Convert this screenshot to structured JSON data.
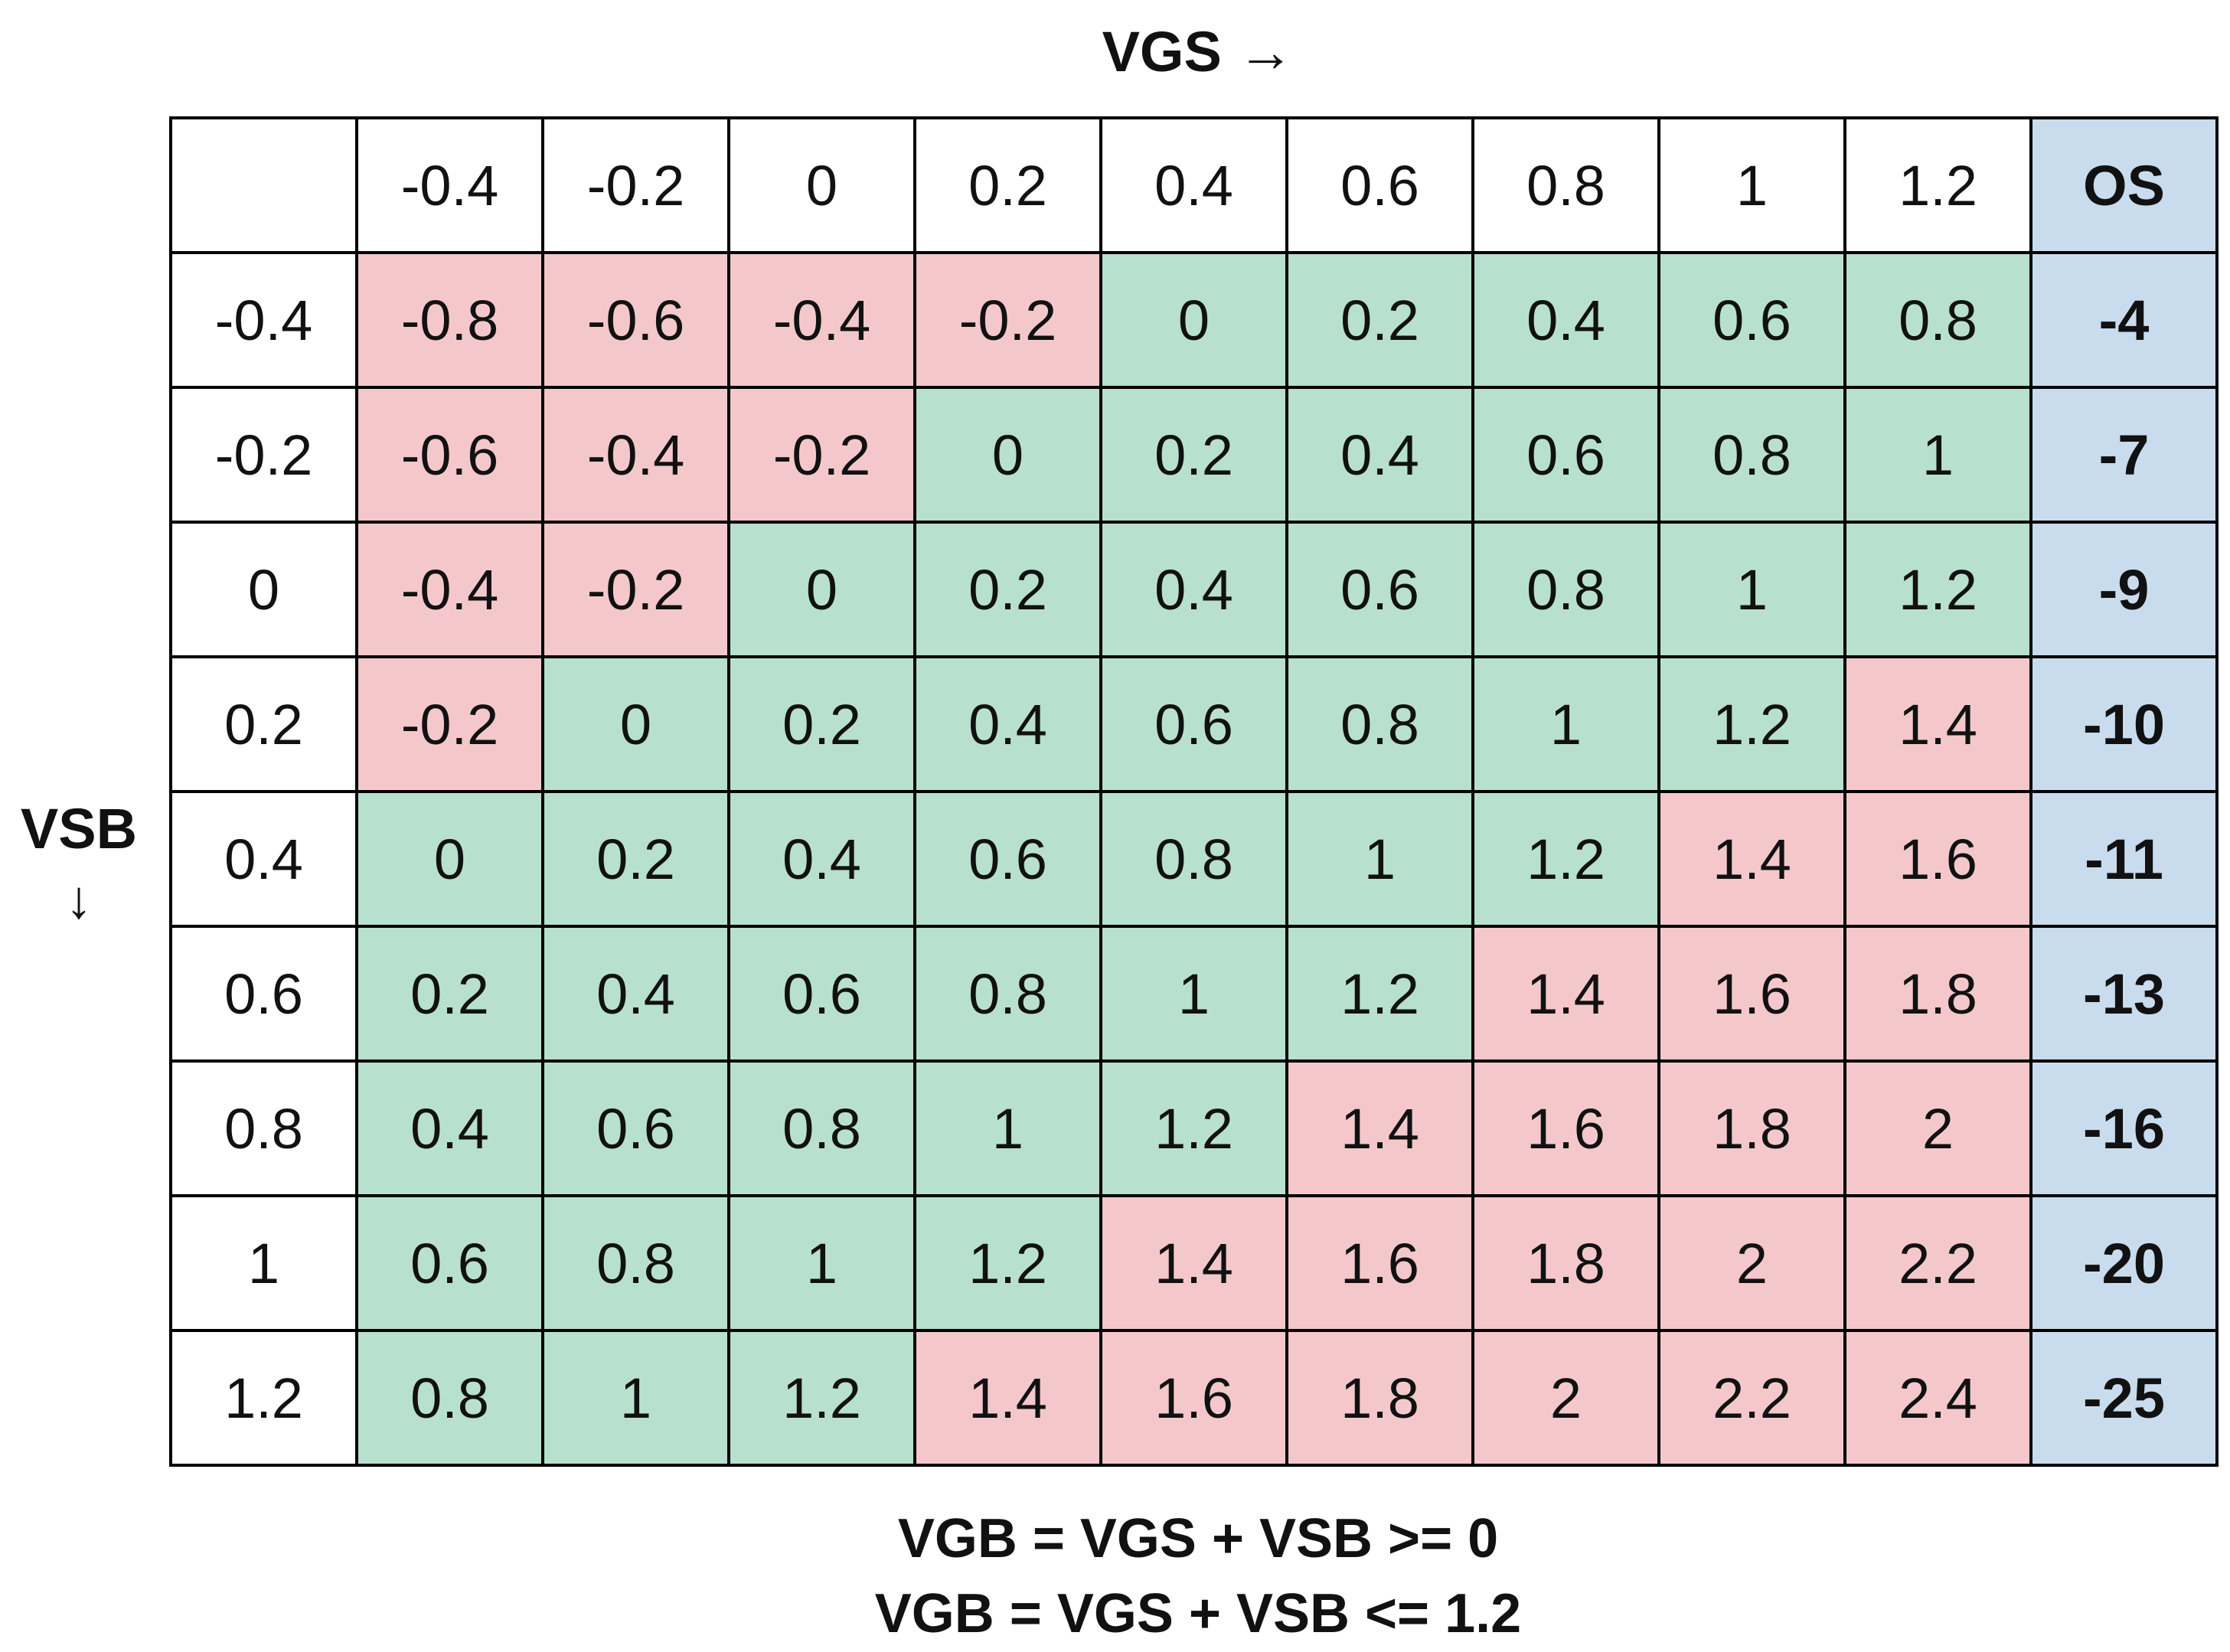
{
  "chart_data": {
    "type": "table",
    "title": "VGS →",
    "xlabel": "VGS",
    "x_arrow": "→",
    "ylabel": "VSB",
    "y_arrow": "↓",
    "corner": "",
    "vgs": [
      "-0.4",
      "-0.2",
      "0",
      "0.2",
      "0.4",
      "0.6",
      "0.8",
      "1",
      "1.2"
    ],
    "os_header": "OS",
    "rows": [
      {
        "vsb": "-0.4",
        "vgb": [
          "-0.8",
          "-0.6",
          "-0.4",
          "-0.2",
          "0",
          "0.2",
          "0.4",
          "0.6",
          "0.8"
        ],
        "os": "-4"
      },
      {
        "vsb": "-0.2",
        "vgb": [
          "-0.6",
          "-0.4",
          "-0.2",
          "0",
          "0.2",
          "0.4",
          "0.6",
          "0.8",
          "1"
        ],
        "os": "-7"
      },
      {
        "vsb": "0",
        "vgb": [
          "-0.4",
          "-0.2",
          "0",
          "0.2",
          "0.4",
          "0.6",
          "0.8",
          "1",
          "1.2"
        ],
        "os": "-9"
      },
      {
        "vsb": "0.2",
        "vgb": [
          "-0.2",
          "0",
          "0.2",
          "0.4",
          "0.6",
          "0.8",
          "1",
          "1.2",
          "1.4"
        ],
        "os": "-10"
      },
      {
        "vsb": "0.4",
        "vgb": [
          "0",
          "0.2",
          "0.4",
          "0.6",
          "0.8",
          "1",
          "1.2",
          "1.4",
          "1.6"
        ],
        "os": "-11"
      },
      {
        "vsb": "0.6",
        "vgb": [
          "0.2",
          "0.4",
          "0.6",
          "0.8",
          "1",
          "1.2",
          "1.4",
          "1.6",
          "1.8"
        ],
        "os": "-13"
      },
      {
        "vsb": "0.8",
        "vgb": [
          "0.4",
          "0.6",
          "0.8",
          "1",
          "1.2",
          "1.4",
          "1.6",
          "1.8",
          "2"
        ],
        "os": "-16"
      },
      {
        "vsb": "1",
        "vgb": [
          "0.6",
          "0.8",
          "1",
          "1.2",
          "1.4",
          "1.6",
          "1.8",
          "2",
          "2.2"
        ],
        "os": "-20"
      },
      {
        "vsb": "1.2",
        "vgb": [
          "0.8",
          "1",
          "1.2",
          "1.4",
          "1.6",
          "1.8",
          "2",
          "2.2",
          "2.4"
        ],
        "os": "-25"
      }
    ],
    "valid_range": [
      0,
      1.2
    ],
    "colors": {
      "valid": "#b8e0cf",
      "invalid": "#f4c8cb",
      "os": "#c9dcee",
      "header": "#ffffff"
    },
    "annotations": [
      "VGB = VGS + VSB >= 0",
      "VGB = VGS + VSB <= 1.2"
    ]
  }
}
